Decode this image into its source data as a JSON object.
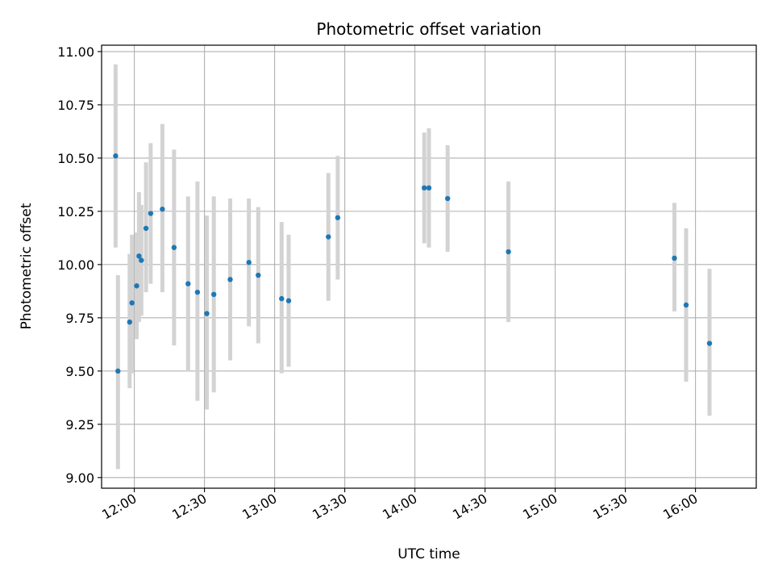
{
  "chart_data": {
    "type": "scatter",
    "title": "Photometric offset variation",
    "xlabel": "UTC time",
    "ylabel": "Photometric offset",
    "grid": true,
    "x_unit": "UTC time",
    "xlim": [
      "11:46",
      "16:26"
    ],
    "ylim": [
      8.95,
      11.03
    ],
    "x_ticks": [
      "12:00",
      "12:30",
      "13:00",
      "13:30",
      "14:00",
      "14:30",
      "15:00",
      "15:30",
      "16:00"
    ],
    "y_ticks": [
      "9.00",
      "9.25",
      "9.50",
      "9.75",
      "10.00",
      "10.25",
      "10.50",
      "10.75",
      "11.00"
    ],
    "marker_color": "#1f77b4",
    "errorbar_color": "#d3d3d3",
    "series": [
      {
        "points": [
          {
            "x": "11:52",
            "y": 10.51,
            "ylow": 10.08,
            "yhigh": 10.94
          },
          {
            "x": "11:53",
            "y": 9.5,
            "ylow": 9.04,
            "yhigh": 9.95
          },
          {
            "x": "11:58",
            "y": 9.73,
            "ylow": 9.42,
            "yhigh": 10.05
          },
          {
            "x": "11:59",
            "y": 9.82,
            "ylow": 9.49,
            "yhigh": 10.14
          },
          {
            "x": "12:01",
            "y": 9.9,
            "ylow": 9.65,
            "yhigh": 10.15
          },
          {
            "x": "12:02",
            "y": 10.04,
            "ylow": 9.73,
            "yhigh": 10.34
          },
          {
            "x": "12:03",
            "y": 10.02,
            "ylow": 9.76,
            "yhigh": 10.28
          },
          {
            "x": "12:05",
            "y": 10.17,
            "ylow": 9.87,
            "yhigh": 10.48
          },
          {
            "x": "12:07",
            "y": 10.24,
            "ylow": 9.91,
            "yhigh": 10.57
          },
          {
            "x": "12:12",
            "y": 10.26,
            "ylow": 9.87,
            "yhigh": 10.66
          },
          {
            "x": "12:17",
            "y": 10.08,
            "ylow": 9.62,
            "yhigh": 10.54
          },
          {
            "x": "12:23",
            "y": 9.91,
            "ylow": 9.5,
            "yhigh": 10.32
          },
          {
            "x": "12:27",
            "y": 9.87,
            "ylow": 9.36,
            "yhigh": 10.39
          },
          {
            "x": "12:31",
            "y": 9.77,
            "ylow": 9.32,
            "yhigh": 10.23
          },
          {
            "x": "12:34",
            "y": 9.86,
            "ylow": 9.4,
            "yhigh": 10.32
          },
          {
            "x": "12:41",
            "y": 9.93,
            "ylow": 9.55,
            "yhigh": 10.31
          },
          {
            "x": "12:49",
            "y": 10.01,
            "ylow": 9.71,
            "yhigh": 10.31
          },
          {
            "x": "12:53",
            "y": 9.95,
            "ylow": 9.63,
            "yhigh": 10.27
          },
          {
            "x": "13:03",
            "y": 9.84,
            "ylow": 9.49,
            "yhigh": 10.2
          },
          {
            "x": "13:06",
            "y": 9.83,
            "ylow": 9.52,
            "yhigh": 10.14
          },
          {
            "x": "13:23",
            "y": 10.13,
            "ylow": 9.83,
            "yhigh": 10.43
          },
          {
            "x": "13:27",
            "y": 10.22,
            "ylow": 9.93,
            "yhigh": 10.51
          },
          {
            "x": "14:04",
            "y": 10.36,
            "ylow": 10.1,
            "yhigh": 10.62
          },
          {
            "x": "14:06",
            "y": 10.36,
            "ylow": 10.08,
            "yhigh": 10.64
          },
          {
            "x": "14:14",
            "y": 10.31,
            "ylow": 10.06,
            "yhigh": 10.56
          },
          {
            "x": "14:40",
            "y": 10.06,
            "ylow": 9.73,
            "yhigh": 10.39
          },
          {
            "x": "15:51",
            "y": 10.03,
            "ylow": 9.78,
            "yhigh": 10.29
          },
          {
            "x": "15:56",
            "y": 9.81,
            "ylow": 9.45,
            "yhigh": 10.17
          },
          {
            "x": "16:06",
            "y": 9.63,
            "ylow": 9.29,
            "yhigh": 9.98
          }
        ]
      }
    ]
  }
}
